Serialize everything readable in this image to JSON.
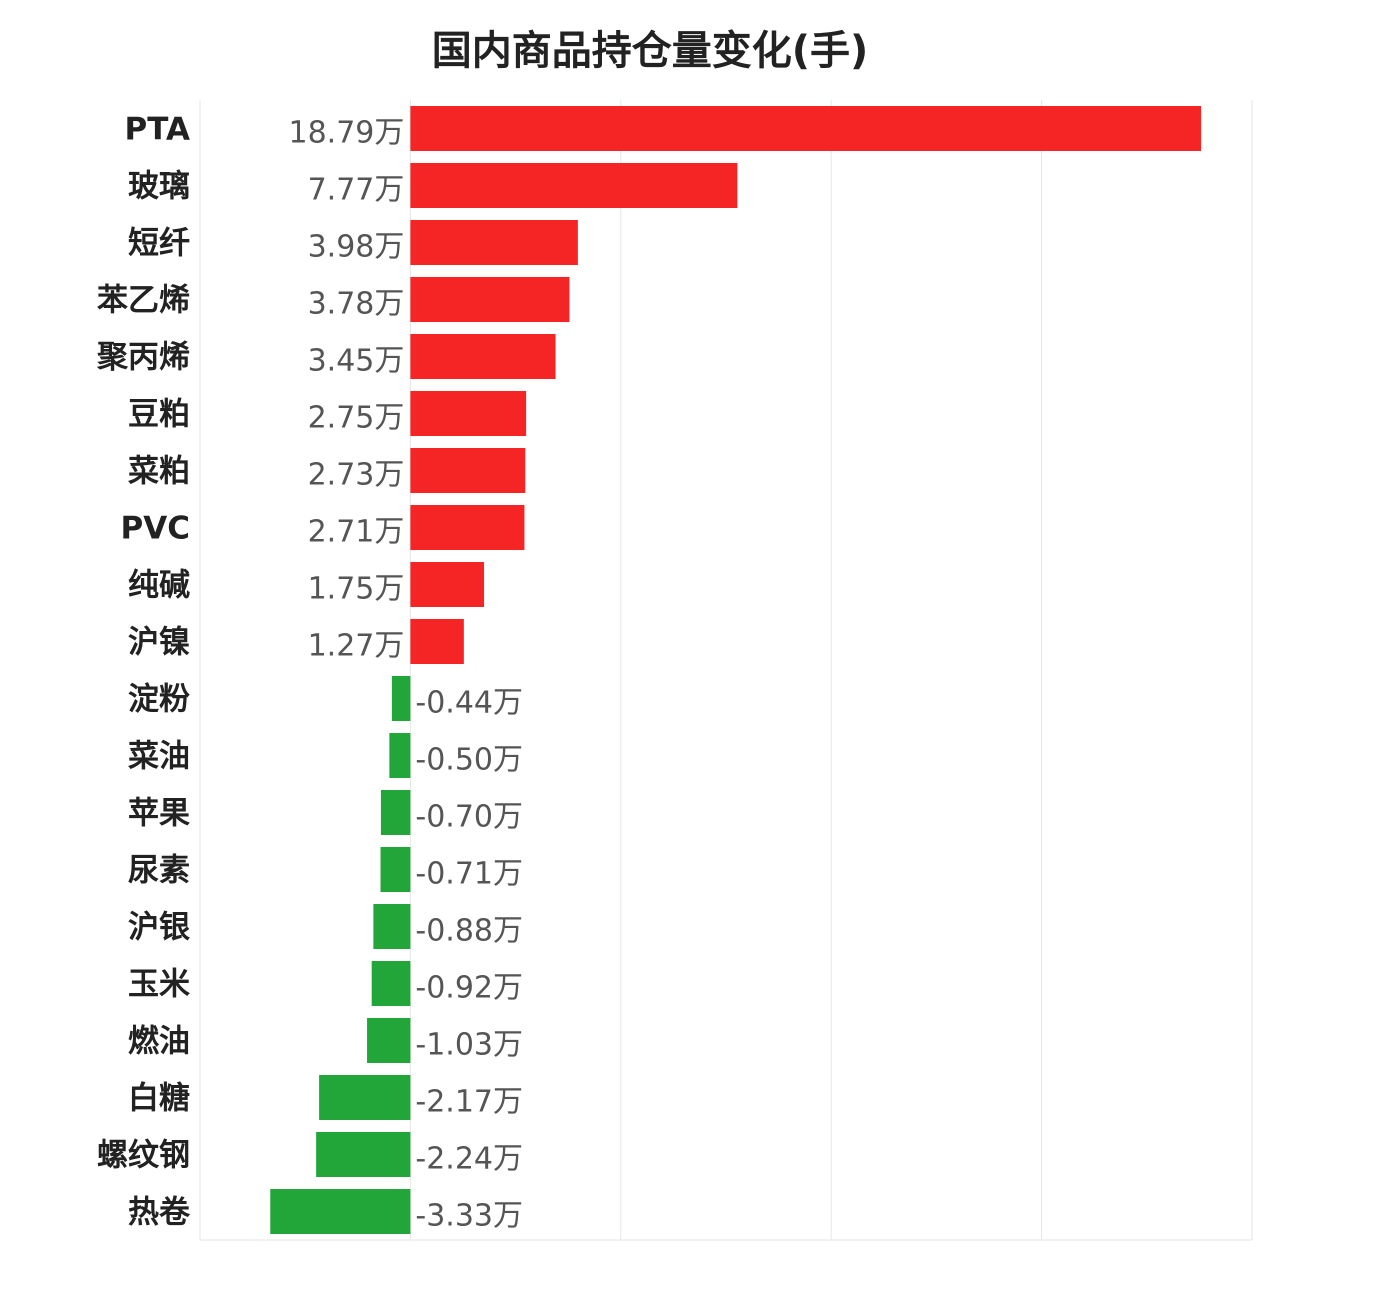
{
  "chart_data": {
    "type": "bar",
    "orientation": "horizontal",
    "title": "国内商品持仓量变化(手)",
    "unit": "万",
    "categories": [
      "PTA",
      "玻璃",
      "短纤",
      "苯乙烯",
      "聚丙烯",
      "豆粕",
      "菜粕",
      "PVC",
      "纯碱",
      "沪镍",
      "淀粉",
      "菜油",
      "苹果",
      "尿素",
      "沪银",
      "玉米",
      "燃油",
      "白糖",
      "螺纹钢",
      "热卷"
    ],
    "values": [
      18.79,
      7.77,
      3.98,
      3.78,
      3.45,
      2.75,
      2.73,
      2.71,
      1.75,
      1.27,
      -0.44,
      -0.5,
      -0.7,
      -0.71,
      -0.88,
      -0.92,
      -1.03,
      -2.17,
      -2.24,
      -3.33
    ],
    "value_labels": [
      "18.79万",
      "7.77万",
      "3.98万",
      "3.78万",
      "3.45万",
      "2.75万",
      "2.73万",
      "2.71万",
      "1.75万",
      "1.27万",
      "-0.44万",
      "-0.50万",
      "-0.70万",
      "-0.71万",
      "-0.88万",
      "-0.92万",
      "-1.03万",
      "-2.17万",
      "-2.24万",
      "-3.33万"
    ],
    "xlim": [
      -5,
      20
    ],
    "grid": true,
    "colors": {
      "positive": "#f52525",
      "negative": "#22a63a",
      "grid": "#e6e6e6"
    }
  }
}
